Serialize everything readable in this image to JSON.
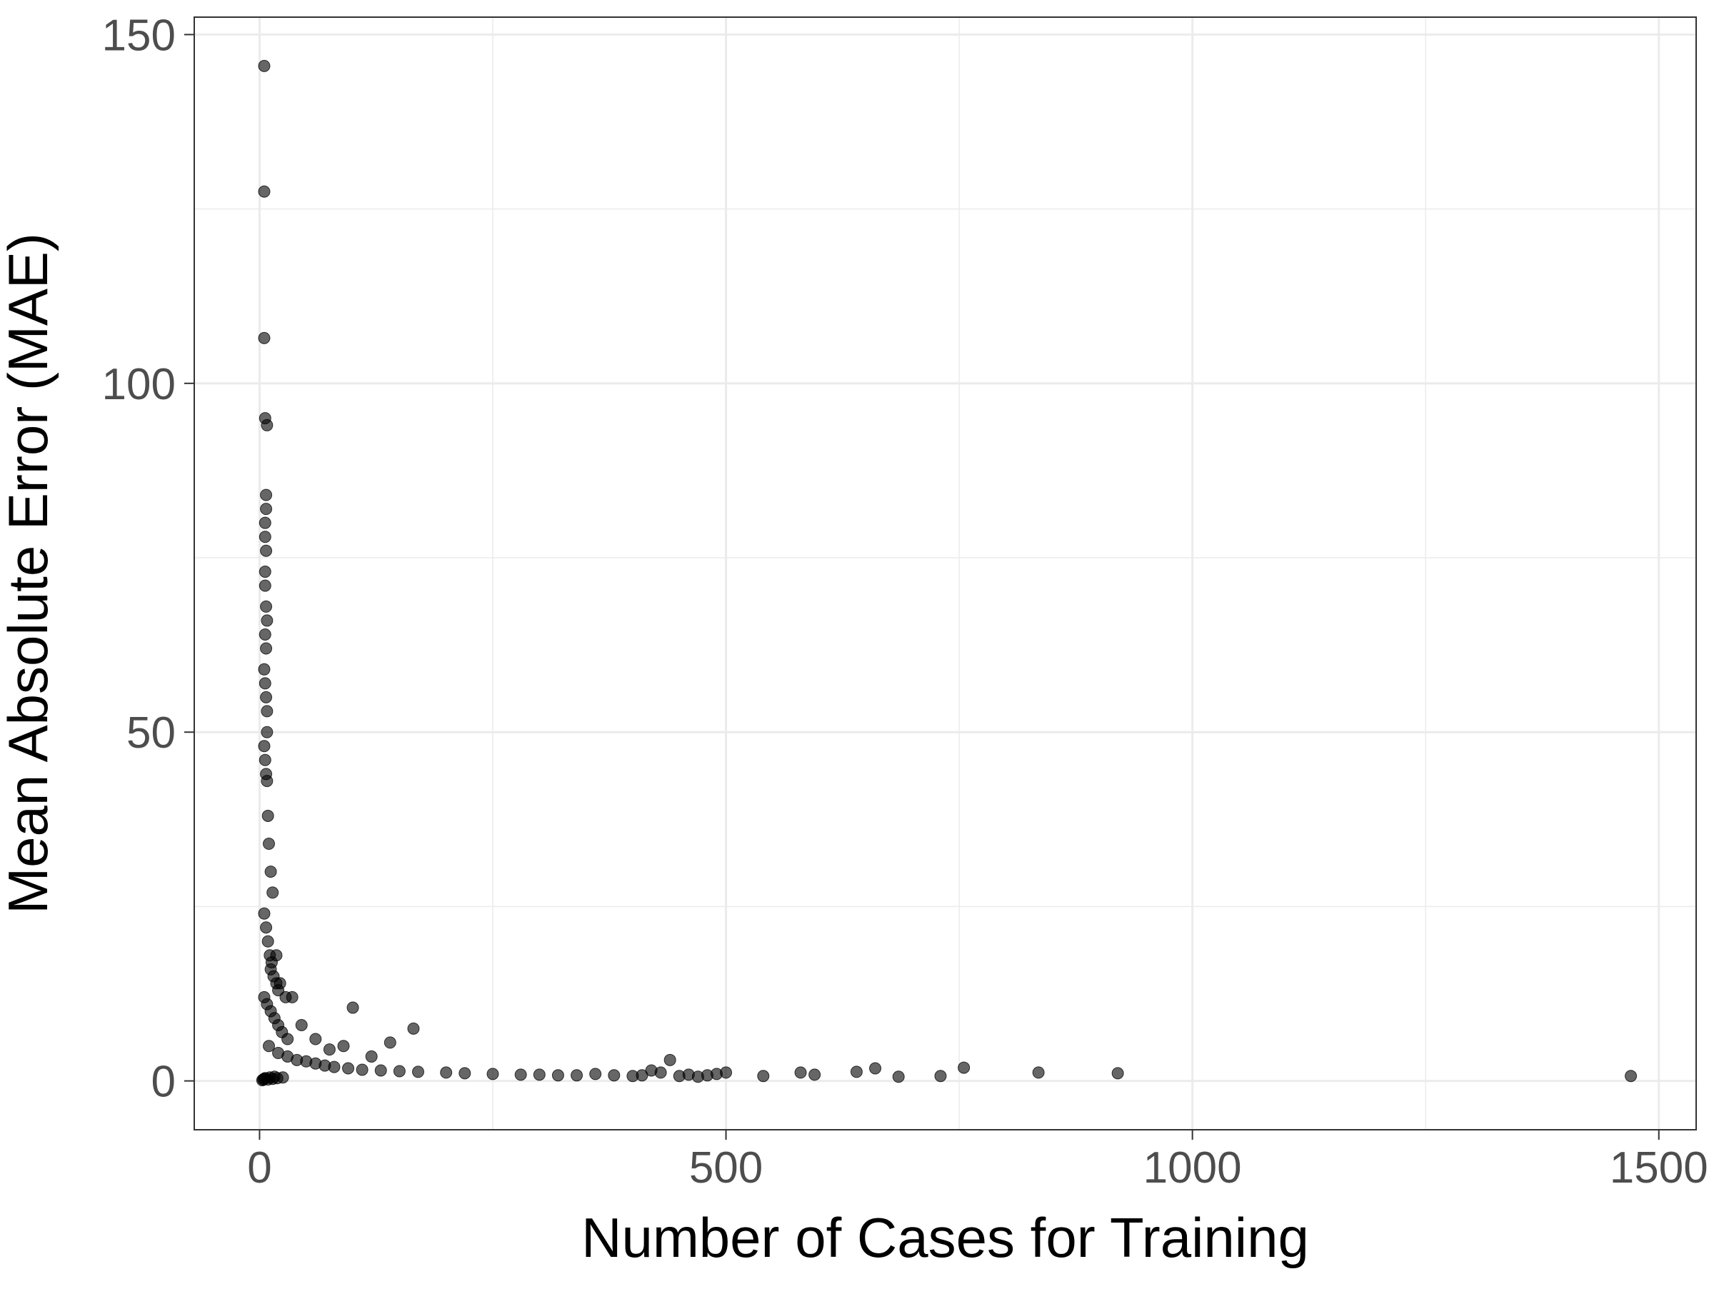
{
  "chart_data": {
    "type": "scatter",
    "title": "",
    "xlabel": "Number of Cases for Training",
    "ylabel": "Mean Absolute Error (MAE)",
    "xlim": [
      -70,
      1540
    ],
    "ylim": [
      -7,
      152.5
    ],
    "x_ticks": [
      0,
      500,
      1000,
      1500
    ],
    "y_ticks": [
      0,
      50,
      100,
      150
    ],
    "x_tick_labels": [
      "0",
      "500",
      "1000",
      "1500"
    ],
    "y_tick_labels": [
      "0",
      "50",
      "100",
      "150"
    ],
    "grid": true,
    "legend": "none",
    "point_color": "#000000",
    "point_opacity": 0.6,
    "series": [
      {
        "x": [
          5,
          5,
          5,
          6,
          8,
          7,
          7,
          6,
          6,
          7,
          6,
          6,
          7,
          8,
          6,
          7,
          5,
          6,
          7,
          8,
          8,
          5,
          6,
          7,
          8,
          9,
          10,
          12,
          14,
          5,
          7,
          9,
          11,
          13,
          15,
          18,
          20,
          5,
          8,
          12,
          16,
          20,
          24,
          30,
          10,
          20,
          30,
          40,
          50,
          60,
          70,
          80,
          95,
          110,
          130,
          150,
          170,
          200,
          220,
          250,
          280,
          300,
          320,
          340,
          360,
          380,
          400,
          410,
          420,
          430,
          440,
          450,
          460,
          470,
          480,
          490,
          500,
          540,
          580,
          595,
          640,
          660,
          685,
          730,
          755,
          835,
          920,
          1470,
          100,
          140,
          165,
          35,
          45,
          60,
          75,
          90,
          120,
          12,
          18,
          22,
          28,
          3,
          4,
          5,
          6,
          9,
          11,
          14,
          16,
          19,
          25
        ],
        "y": [
          145.5,
          127.5,
          106.5,
          95.0,
          94.0,
          84.0,
          82.0,
          80.0,
          78.0,
          76.0,
          73.0,
          71.0,
          68.0,
          66.0,
          64.0,
          62.0,
          59.0,
          57.0,
          55.0,
          53.0,
          50.0,
          48.0,
          46.0,
          44.0,
          43.0,
          38.0,
          34.0,
          30.0,
          27.0,
          24.0,
          22.0,
          20.0,
          18.0,
          17.0,
          15.0,
          14.0,
          13.0,
          12.0,
          11.0,
          10.0,
          9.0,
          8.0,
          7.0,
          6.0,
          5.0,
          4.0,
          3.5,
          3.0,
          2.8,
          2.5,
          2.2,
          2.0,
          1.8,
          1.6,
          1.5,
          1.4,
          1.3,
          1.2,
          1.1,
          1.0,
          0.9,
          0.9,
          0.8,
          0.8,
          1.0,
          0.8,
          0.7,
          0.8,
          1.5,
          1.2,
          3.0,
          0.7,
          0.9,
          0.6,
          0.8,
          1.0,
          1.2,
          0.7,
          1.2,
          0.9,
          1.3,
          1.8,
          0.6,
          0.7,
          1.9,
          1.2,
          1.1,
          0.7,
          10.5,
          5.5,
          7.5,
          12.0,
          8.0,
          6.0,
          4.5,
          5.0,
          3.5,
          16.0,
          18.0,
          14.0,
          12.0,
          0.1,
          0.2,
          0.3,
          0.4,
          0.2,
          0.5,
          0.3,
          0.6,
          0.4,
          0.5
        ]
      }
    ]
  }
}
